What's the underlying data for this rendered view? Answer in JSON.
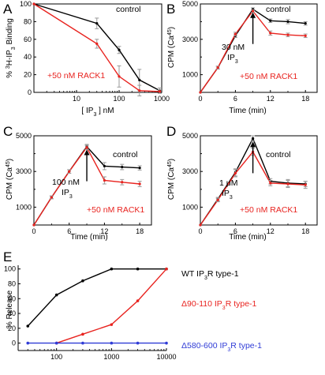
{
  "colors": {
    "control": "#000000",
    "rack1": "#e8231f",
    "wt": "#000000",
    "d90": "#e8231f",
    "d580": "#2f3bd6",
    "error": "#9a9a9a"
  },
  "chart_data": [
    {
      "panel": "A",
      "type": "line",
      "xscale": "log",
      "xlim": [
        1,
        1000
      ],
      "ylim": [
        0,
        100
      ],
      "xticks": [
        1,
        10,
        100,
        1000
      ],
      "xticklabels": [
        "",
        "10",
        "100",
        "1000"
      ],
      "yticks": [
        0,
        20,
        40,
        60,
        80,
        100
      ],
      "xlabel": "[ IP3 ] nM",
      "ylabel": "% 3H-IP3 Binding",
      "series": [
        {
          "name": "control",
          "x": [
            1,
            30,
            100,
            300,
            900
          ],
          "y": [
            100,
            78,
            48,
            14,
            2
          ],
          "err": [
            0,
            6,
            4,
            12,
            3
          ]
        },
        {
          "name": "+50 nM RACK1",
          "x": [
            1,
            30,
            100,
            300,
            900
          ],
          "y": [
            100,
            55,
            18,
            2,
            1
          ],
          "err": [
            0,
            5,
            12,
            6,
            2
          ]
        }
      ]
    },
    {
      "panel": "B",
      "type": "line",
      "xlim": [
        0,
        20
      ],
      "ylim": [
        0,
        5000
      ],
      "xticks": [
        0,
        6,
        12,
        18
      ],
      "yticks": [
        1000,
        3000,
        5000
      ],
      "xlabel": "Time (min)",
      "ylabel": "CPM (Ca45)",
      "arrow_at_min": 9,
      "arrow_label": [
        "30 nM",
        "IP3"
      ],
      "series": [
        {
          "name": "control",
          "x": [
            0,
            3,
            6,
            9,
            12,
            15,
            18
          ],
          "y": [
            0,
            1400,
            3200,
            4700,
            4050,
            4000,
            3900
          ],
          "err": [
            0,
            80,
            100,
            80,
            100,
            120,
            100
          ]
        },
        {
          "name": "+50 nM RACK1",
          "x": [
            0,
            3,
            6,
            9,
            12,
            15,
            18
          ],
          "y": [
            0,
            1400,
            3300,
            4600,
            3350,
            3250,
            3200
          ],
          "err": [
            0,
            80,
            100,
            80,
            120,
            100,
            100
          ]
        }
      ]
    },
    {
      "panel": "C",
      "type": "line",
      "xlim": [
        0,
        20
      ],
      "ylim": [
        0,
        5000
      ],
      "xticks": [
        0,
        6,
        12,
        18
      ],
      "yticks": [
        1000,
        3000,
        5000
      ],
      "xlabel": "Time (min)",
      "ylabel": "CPM (Ca45)",
      "arrow_at_min": 9,
      "arrow_label": [
        "100 nM",
        "IP3"
      ],
      "series": [
        {
          "name": "control",
          "x": [
            0,
            3,
            6,
            9,
            12,
            15,
            18
          ],
          "y": [
            0,
            1550,
            3000,
            4400,
            3300,
            3250,
            3200
          ],
          "err": [
            0,
            80,
            100,
            120,
            200,
            150,
            120
          ]
        },
        {
          "name": "+50 nM RACK1",
          "x": [
            0,
            3,
            6,
            9,
            12,
            15,
            18
          ],
          "y": [
            0,
            1550,
            3000,
            4350,
            2500,
            2400,
            2300
          ],
          "err": [
            0,
            80,
            100,
            120,
            200,
            150,
            150
          ]
        }
      ]
    },
    {
      "panel": "D",
      "type": "line",
      "xlim": [
        0,
        20
      ],
      "ylim": [
        0,
        5000
      ],
      "xticks": [
        0,
        6,
        12,
        18
      ],
      "yticks": [
        1000,
        3000,
        5000
      ],
      "xlabel": "Time (min)",
      "ylabel": "CPM (Ca45)",
      "arrow_at_min": 9,
      "arrow_label": [
        "1 μM",
        "IP3"
      ],
      "series": [
        {
          "name": "control",
          "x": [
            0,
            3,
            6,
            9,
            12,
            15,
            18
          ],
          "y": [
            0,
            1450,
            2950,
            4850,
            2450,
            2350,
            2300
          ],
          "err": [
            0,
            100,
            200,
            150,
            150,
            200,
            150
          ]
        },
        {
          "name": "+50 nM RACK1",
          "x": [
            0,
            3,
            6,
            9,
            12,
            15,
            18
          ],
          "y": [
            0,
            1400,
            2900,
            4100,
            2350,
            2300,
            2250
          ],
          "err": [
            0,
            100,
            200,
            200,
            150,
            200,
            200
          ]
        }
      ]
    },
    {
      "panel": "E",
      "type": "line",
      "xscale": "log",
      "xlim": [
        20,
        10000
      ],
      "ylim": [
        -10,
        105
      ],
      "xticks": [
        100,
        1000,
        10000
      ],
      "yticks": [
        0,
        20,
        40,
        60,
        80,
        100
      ],
      "xlabel": "",
      "ylabel": "% Release",
      "series": [
        {
          "name": "WT IP3R type-1",
          "x": [
            30,
            100,
            300,
            1000,
            3000,
            10000
          ],
          "y": [
            23,
            65,
            84,
            100,
            100,
            100
          ]
        },
        {
          "name": "Δ90-110 IP3R type-1",
          "x": [
            100,
            300,
            1000,
            3000,
            10000
          ],
          "y": [
            0,
            12,
            25,
            57,
            100
          ]
        },
        {
          "name": "Δ580-600 IP3R type-1",
          "x": [
            30,
            100,
            300,
            1000,
            3000,
            10000
          ],
          "y": [
            0,
            0,
            0,
            0,
            0,
            0
          ]
        }
      ]
    }
  ],
  "text": {
    "A": {
      "letter": "A",
      "control": "control",
      "rack": "+50 nM RACK1",
      "xlabel_pre": "[ IP",
      "xlabel_sub": "3",
      "xlabel_post": " ] nM",
      "ylabel_pre": "% ",
      "ylabel_sup": "3",
      "ylabel_mid": "H-IP",
      "ylabel_sub": "3",
      "ylabel_post": " Binding"
    },
    "B": {
      "letter": "B",
      "control": "control",
      "rack": "+50 nM RACK1",
      "xlabel": "Time (min)",
      "ylabel_pre": "CPM (Ca",
      "ylabel_sup": "45",
      "ylabel_post": ")",
      "arrow_line1": "30 nM",
      "arrow_line2_pre": "IP",
      "arrow_line2_sub": "3"
    },
    "C": {
      "letter": "C",
      "control": "control",
      "rack": "+50 nM RACK1",
      "xlabel": "Time (min)",
      "ylabel_pre": "CPM (Ca",
      "ylabel_sup": "45",
      "ylabel_post": ")",
      "arrow_line1": "100 nM",
      "arrow_line2_pre": "IP",
      "arrow_line2_sub": "3"
    },
    "D": {
      "letter": "D",
      "control": "control",
      "rack": "+50 nM RACK1",
      "xlabel": "Time (min)",
      "ylabel_pre": "CPM (Ca",
      "ylabel_sup": "45",
      "ylabel_post": ")",
      "arrow_line1": "1 μM",
      "arrow_line2_pre": "IP",
      "arrow_line2_sub": "3"
    },
    "E": {
      "letter": "E",
      "ylabel": "% Release",
      "wt_pre": "WT IP",
      "wt_sub": "3",
      "wt_post": "R type-1",
      "d90_pre": "Δ90-110 IP",
      "d90_sub": "3",
      "d90_post": "R type-1",
      "d580_pre": "Δ580-600 IP",
      "d580_sub": "3",
      "d580_post": "R type-1"
    }
  }
}
